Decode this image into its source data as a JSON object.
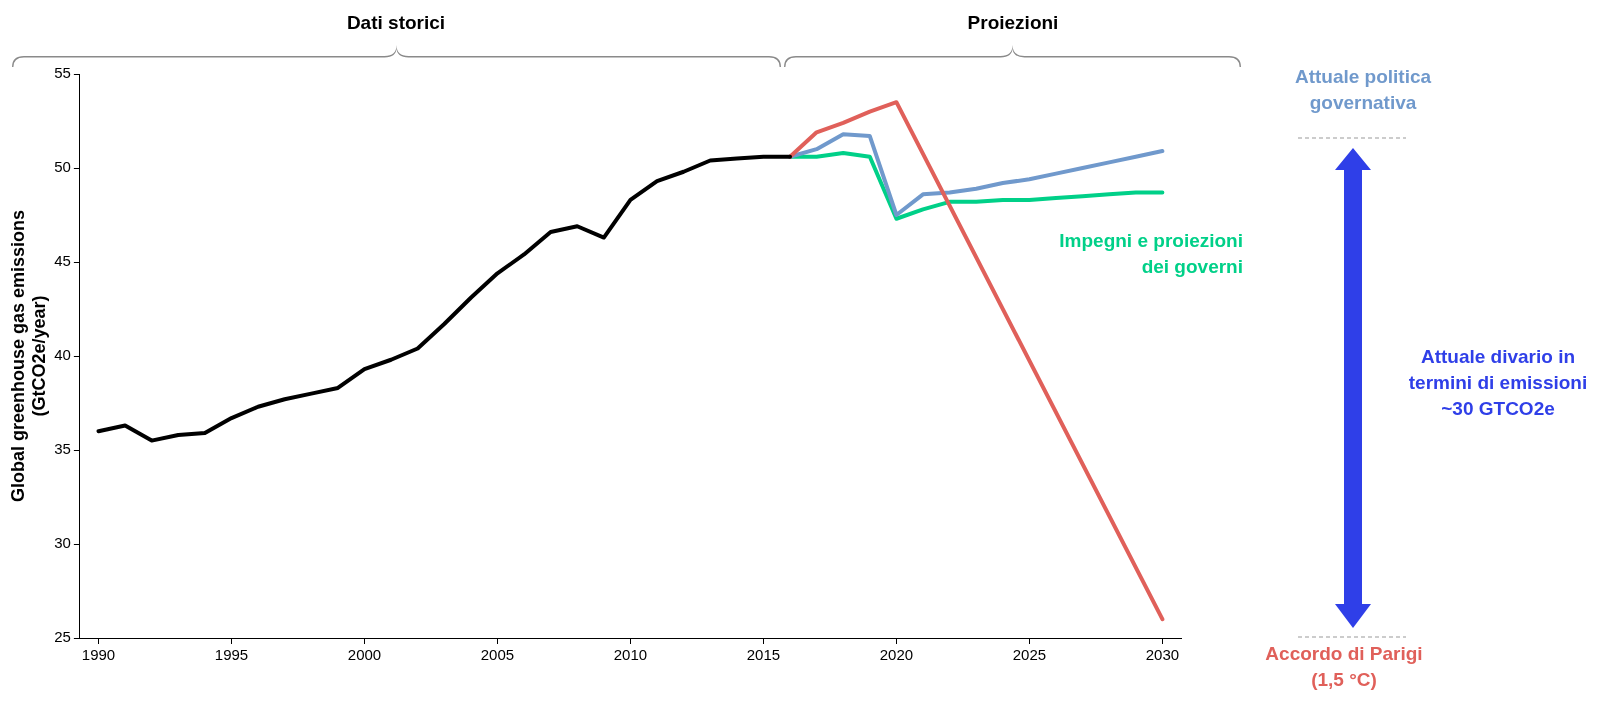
{
  "chart_data": {
    "type": "line",
    "ylabel": "Global greenhouse gas emissions\n(GtCO2e/year)",
    "annotations": [
      "Dati storici",
      "Proiezioni",
      "Attuale divario in\ntermini di emissioni\n~30 GTCO2e"
    ],
    "xlim": [
      1989.3,
      2030.7
    ],
    "xticks": [
      1990,
      1995,
      2000,
      2005,
      2010,
      2015,
      2020,
      2025,
      2030
    ],
    "ylim": [
      25,
      55
    ],
    "yticks": [
      25,
      30,
      35,
      40,
      45,
      50,
      55
    ],
    "grid": false,
    "legend": false,
    "series": [
      {
        "color": "#000000",
        "x": [
          1990,
          1991,
          1992,
          1993,
          1994,
          1995,
          1996,
          1997,
          1998,
          1999,
          2000,
          2001,
          2002,
          2003,
          2004,
          2005,
          2006,
          2007,
          2008,
          2009,
          2010,
          2011,
          2012,
          2013,
          2014,
          2015,
          2016
        ],
        "values": [
          36.0,
          36.3,
          35.5,
          35.8,
          35.9,
          36.7,
          37.3,
          37.7,
          38.0,
          38.3,
          39.3,
          39.8,
          40.4,
          41.7,
          43.1,
          44.4,
          45.4,
          46.6,
          46.9,
          46.3,
          48.3,
          49.3,
          49.8,
          50.4,
          50.5,
          50.6,
          50.6
        ]
      },
      {
        "name": "Accordo di Parigi\n(1,5 °C)",
        "color": "#e0605a",
        "x": [
          2016,
          2017,
          2018,
          2019,
          2020,
          2030
        ],
        "values": [
          50.6,
          51.9,
          52.4,
          53.0,
          53.5,
          26.0
        ]
      },
      {
        "name": "Attuale politica\ngovernativa",
        "color": "#7099cc",
        "x": [
          2016,
          2017,
          2018,
          2019,
          2020,
          2021,
          2022,
          2023,
          2024,
          2025,
          2026,
          2027,
          2028,
          2029,
          2030
        ],
        "values": [
          50.6,
          51.0,
          51.8,
          51.7,
          47.5,
          48.6,
          48.7,
          48.9,
          49.2,
          49.4,
          49.7,
          50.0,
          50.3,
          50.6,
          50.9
        ]
      },
      {
        "name": "Impegni e proiezioni\ndei governi",
        "color": "#00d088",
        "x": [
          2016,
          2017,
          2018,
          2019,
          2020,
          2021,
          2022,
          2023,
          2024,
          2025,
          2026,
          2027,
          2028,
          2029,
          2030
        ],
        "values": [
          50.6,
          50.6,
          50.8,
          50.6,
          47.3,
          47.8,
          48.2,
          48.2,
          48.3,
          48.3,
          48.4,
          48.5,
          48.6,
          48.7,
          48.7
        ]
      }
    ]
  }
}
